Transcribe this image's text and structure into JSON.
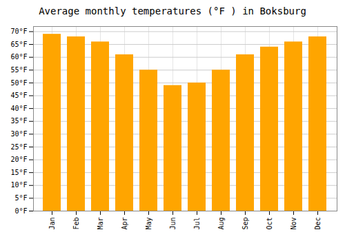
{
  "chart_data": {
    "type": "bar",
    "title": "Average monthly temperatures (°F ) in Boksburg",
    "categories": [
      "Jan",
      "Feb",
      "Mar",
      "Apr",
      "May",
      "Jun",
      "Jul",
      "Aug",
      "Sep",
      "Oct",
      "Nov",
      "Dec"
    ],
    "values": [
      69,
      68,
      66,
      61,
      55,
      49,
      50,
      55,
      61,
      64,
      66,
      68
    ],
    "color": "#FFA500",
    "ylim": [
      0,
      72
    ],
    "yticks": [
      {
        "value": 0,
        "label": "0°F"
      },
      {
        "value": 5,
        "label": "5°F"
      },
      {
        "value": 10,
        "label": "10°F"
      },
      {
        "value": 15,
        "label": "15°F"
      },
      {
        "value": 20,
        "label": "20°F"
      },
      {
        "value": 25,
        "label": "25°F"
      },
      {
        "value": 30,
        "label": "30°F"
      },
      {
        "value": 35,
        "label": "35°F"
      },
      {
        "value": 40,
        "label": "40°F"
      },
      {
        "value": 45,
        "label": "45°F"
      },
      {
        "value": 50,
        "label": "50°F"
      },
      {
        "value": 55,
        "label": "55°F"
      },
      {
        "value": 60,
        "label": "60°F"
      },
      {
        "value": 65,
        "label": "65°F"
      },
      {
        "value": 70,
        "label": "70°F"
      }
    ],
    "grid": true
  }
}
